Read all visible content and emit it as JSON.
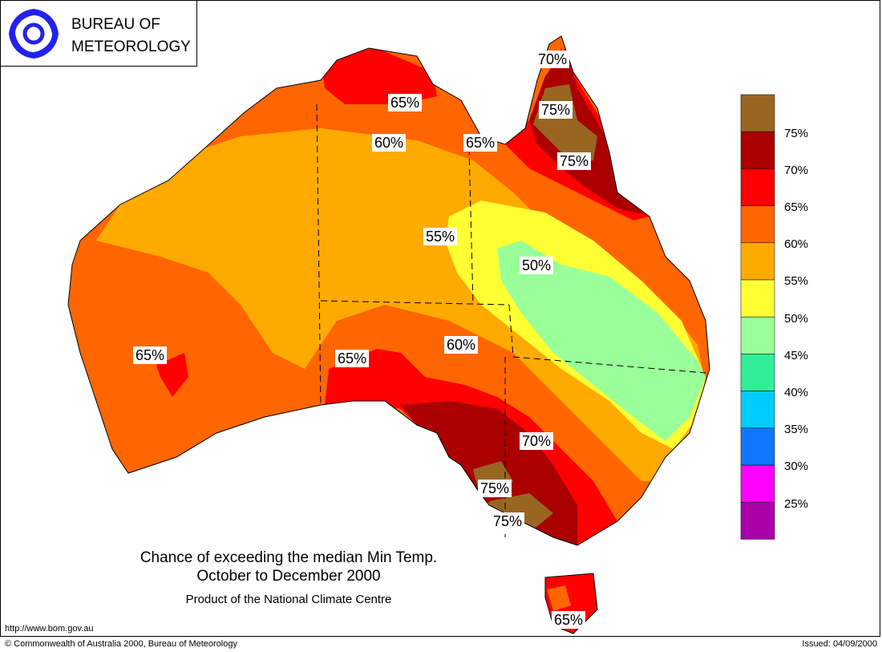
{
  "header": {
    "logo_line1": "BUREAU OF",
    "logo_line2": "METEOROLOGY",
    "logo_icon": "swirl-logo-icon"
  },
  "map": {
    "labels": [
      {
        "id": "label-nt-coast",
        "text": "65%"
      },
      {
        "id": "label-cape-york",
        "text": "70%"
      },
      {
        "id": "label-qld-north-a",
        "text": "75%"
      },
      {
        "id": "label-qld-north-b",
        "text": "75%"
      },
      {
        "id": "label-nt-60",
        "text": "60%"
      },
      {
        "id": "label-gulf-65",
        "text": "65%"
      },
      {
        "id": "label-55",
        "text": "55%"
      },
      {
        "id": "label-50",
        "text": "50%"
      },
      {
        "id": "label-wa-65",
        "text": "65%"
      },
      {
        "id": "label-sa-65",
        "text": "65%"
      },
      {
        "id": "label-sa-60",
        "text": "60%"
      },
      {
        "id": "label-vic-70",
        "text": "70%"
      },
      {
        "id": "label-vic-75a",
        "text": "75%"
      },
      {
        "id": "label-vic-75b",
        "text": "75%"
      },
      {
        "id": "label-tas-65",
        "text": "65%"
      }
    ]
  },
  "legend": {
    "items": [
      {
        "label": "75%",
        "color": "#996622"
      },
      {
        "label": "70%",
        "color": "#aa0000"
      },
      {
        "label": "65%",
        "color": "#ff0000"
      },
      {
        "label": "60%",
        "color": "#ff6600"
      },
      {
        "label": "55%",
        "color": "#ffaa00"
      },
      {
        "label": "50%",
        "color": "#ffff33"
      },
      {
        "label": "45%",
        "color": "#99ff99"
      },
      {
        "label": "40%",
        "color": "#33ee99"
      },
      {
        "label": "35%",
        "color": "#00ccff"
      },
      {
        "label": "30%",
        "color": "#1177ff"
      },
      {
        "label": "25%",
        "color": "#ff00ff"
      }
    ],
    "bottom_color": "#aa00aa"
  },
  "caption": {
    "title": "Chance of exceeding the median Min Temp.",
    "period": "October to December 2000",
    "product": "Product of the National Climate Centre"
  },
  "footer": {
    "url": "http://www.bom.gov.au",
    "copyright": "© Commonwealth of Australia 2000, Bureau of Meteorology",
    "issued": "Issued: 04/09/2000"
  }
}
